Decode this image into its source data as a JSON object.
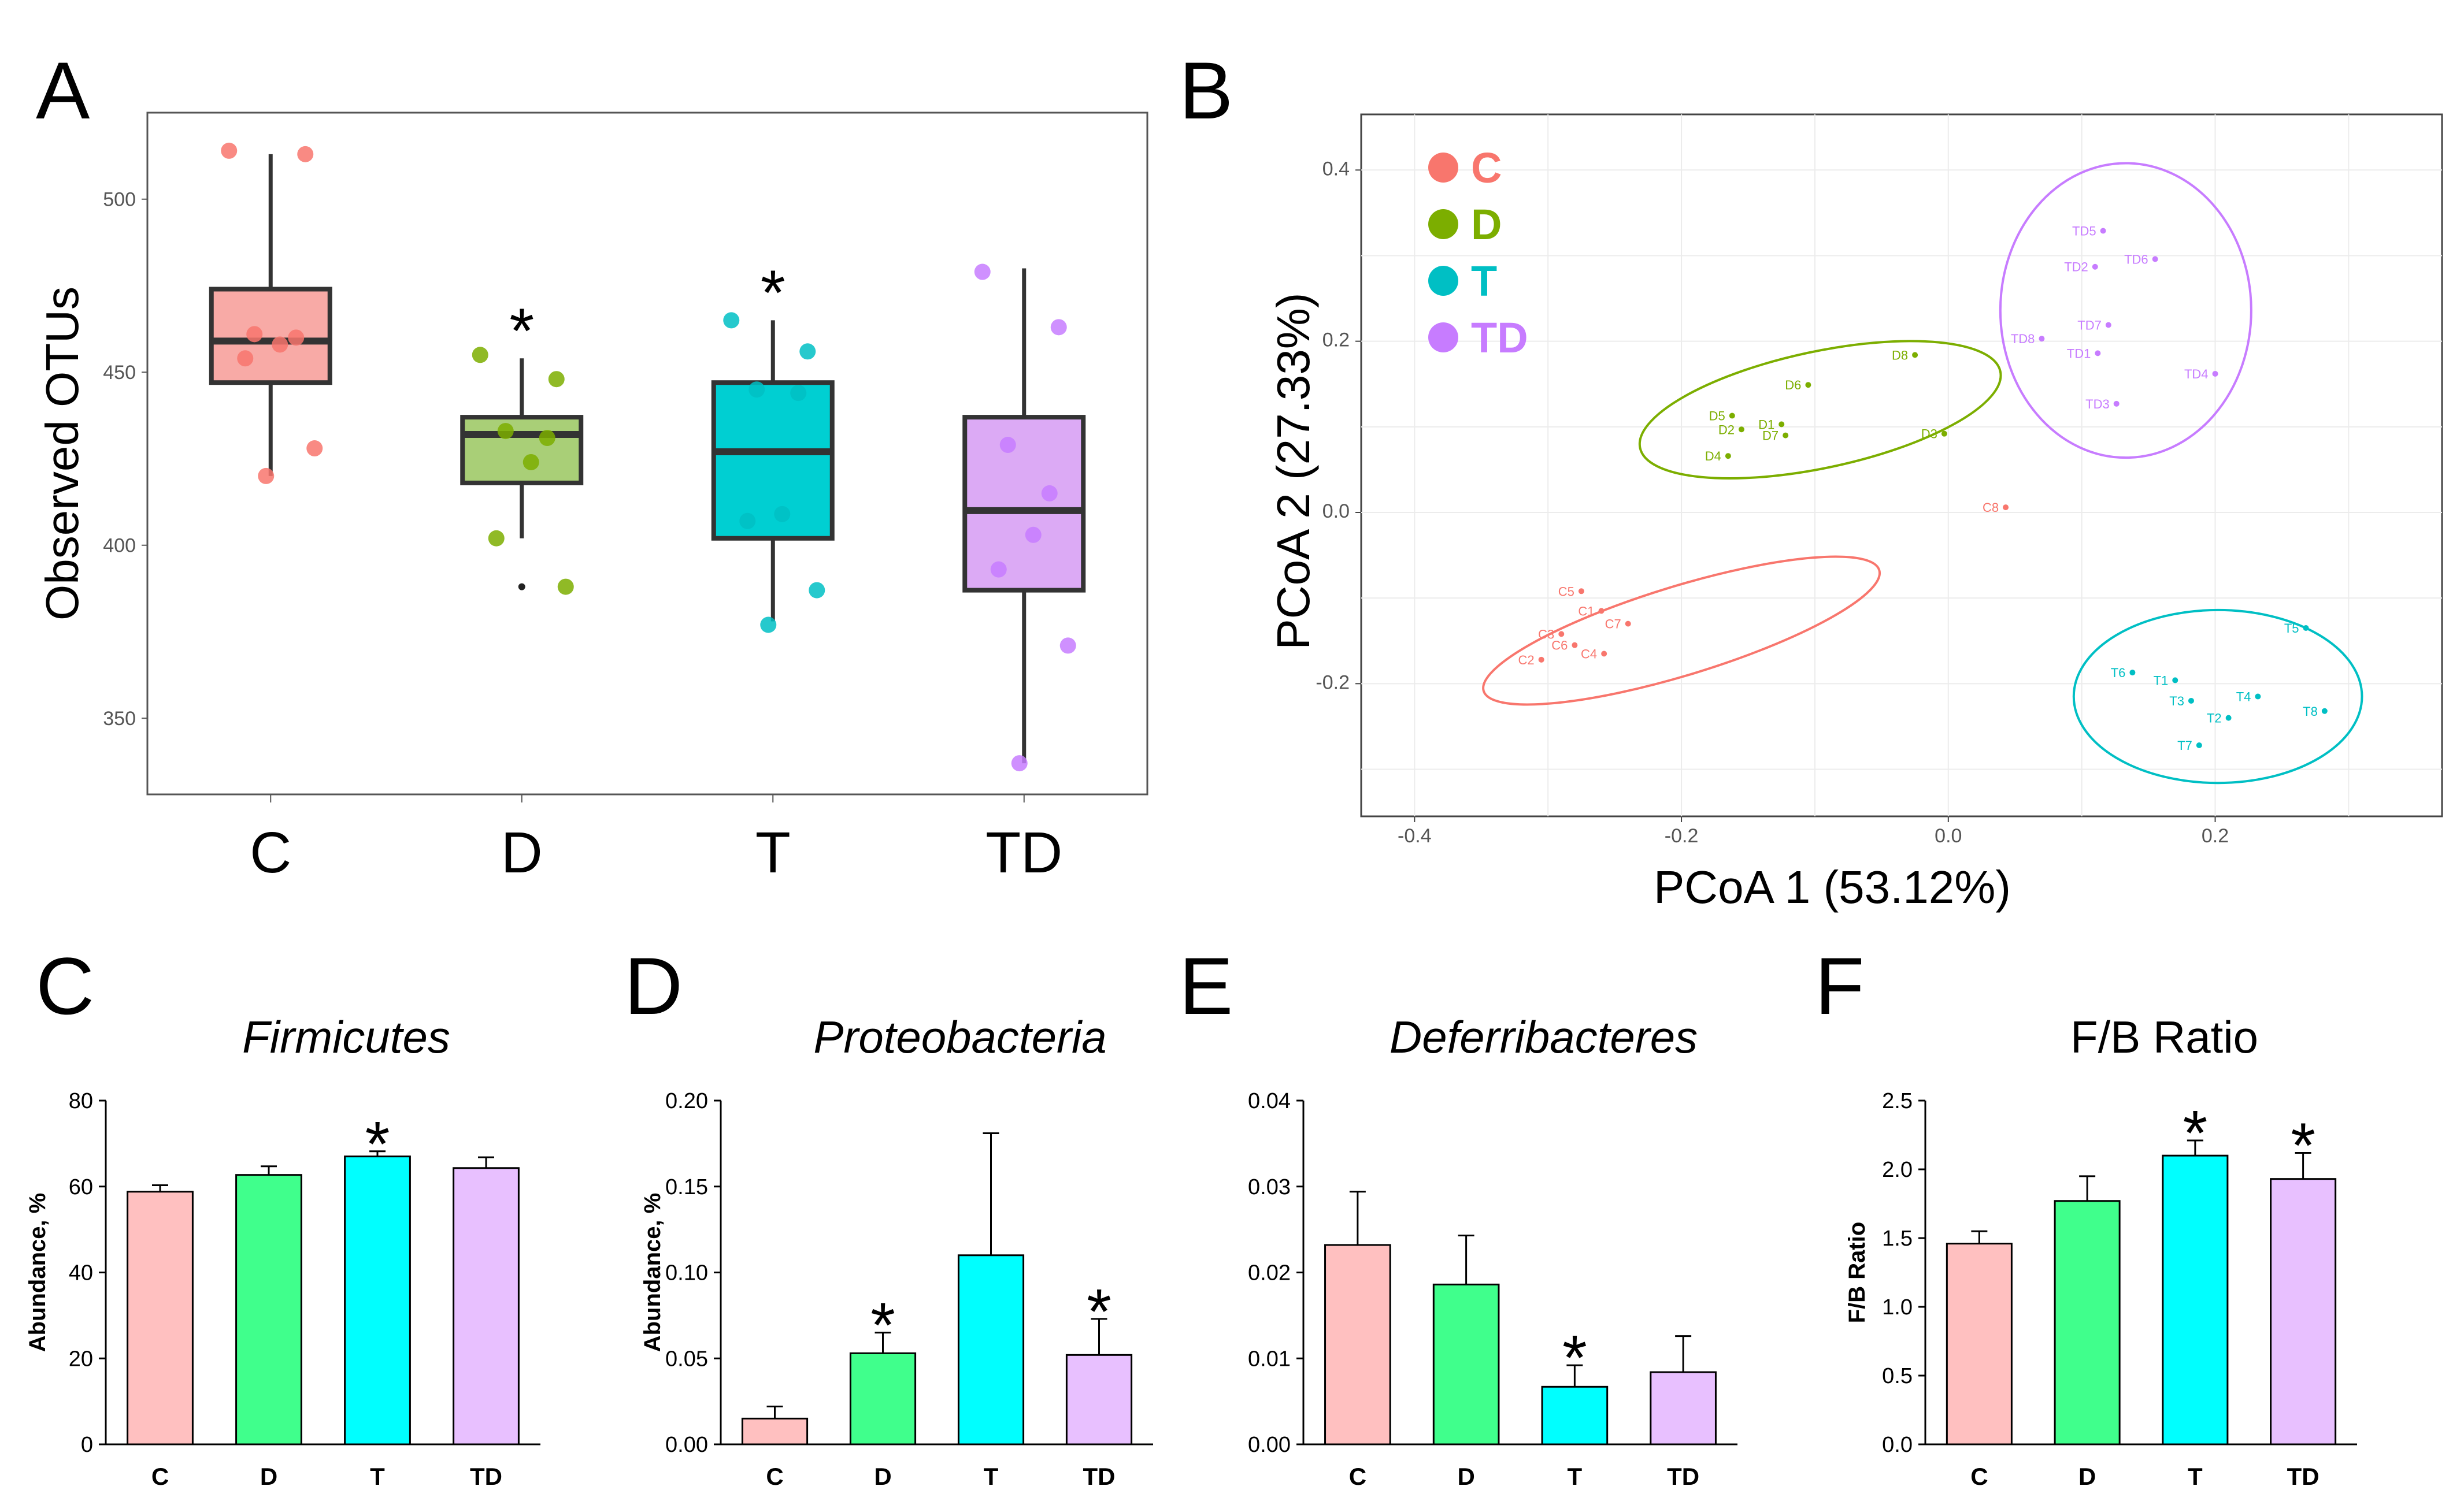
{
  "colors": {
    "C": "#f8766d",
    "D": "#7cae00",
    "T": "#00bfc4",
    "TD": "#c77cff"
  },
  "panels": {
    "A": {
      "letter": "A"
    },
    "B": {
      "letter": "B"
    },
    "C": {
      "letter": "C"
    },
    "D": {
      "letter": "D"
    },
    "E": {
      "letter": "E"
    },
    "F": {
      "letter": "F"
    }
  },
  "chart_data": [
    {
      "panel": "A",
      "type": "box",
      "ylabel": "Observed OTUs",
      "ylim": [
        328,
        525
      ],
      "yticks": [
        350,
        400,
        450,
        500
      ],
      "categories": [
        "C",
        "D",
        "T",
        "TD"
      ],
      "box_fill": [
        "#f8aaa6",
        "#a9cf77",
        "#00cfd2",
        "#dcaaf5"
      ],
      "boxes": [
        {
          "q1": 447,
          "median": 459,
          "q3": 474,
          "lo": 420,
          "hi": 513
        },
        {
          "q1": 418,
          "median": 432,
          "q3": 437,
          "lo": 402,
          "hi": 454
        },
        {
          "q1": 402,
          "median": 427,
          "q3": 447,
          "lo": 378,
          "hi": 465
        },
        {
          "q1": 387,
          "median": 410,
          "q3": 437,
          "lo": 337,
          "hi": 480
        }
      ],
      "outliers": [
        {
          "group": 1,
          "value": 388
        }
      ],
      "points": [
        [
          514,
          513,
          461,
          460,
          458,
          454,
          428,
          420
        ],
        [
          455,
          448,
          433,
          431,
          424,
          402,
          388
        ],
        [
          465,
          456,
          445,
          444,
          409,
          407,
          387,
          377
        ],
        [
          479,
          463,
          429,
          415,
          403,
          393,
          371,
          337
        ]
      ],
      "significance": [
        "",
        "*",
        "*",
        ""
      ]
    },
    {
      "panel": "B",
      "type": "scatter",
      "xlabel": "PCoA 1 (53.12%)",
      "ylabel": "PCoA 2 (27.33%)",
      "xlim": [
        -0.44,
        0.37
      ],
      "ylim": [
        -0.355,
        0.465
      ],
      "xticks": [
        -0.4,
        -0.2,
        0.0,
        0.2
      ],
      "yticks": [
        -0.2,
        0.0,
        0.2,
        0.4
      ],
      "tick_labels_x": [
        "-0.4",
        "-0.2",
        "0.0",
        "0.2"
      ],
      "tick_labels_y": [
        "-0.2",
        "0.0",
        "0.2",
        "0.4"
      ],
      "legend": [
        "C",
        "D",
        "T",
        "TD"
      ],
      "series": [
        {
          "name": "C",
          "points": [
            {
              "label": "C5",
              "x": -0.275,
              "y": -0.092
            },
            {
              "label": "C1",
              "x": -0.26,
              "y": -0.115
            },
            {
              "label": "C3",
              "x": -0.29,
              "y": -0.142
            },
            {
              "label": "C6",
              "x": -0.28,
              "y": -0.155
            },
            {
              "label": "C7",
              "x": -0.24,
              "y": -0.13
            },
            {
              "label": "C2",
              "x": -0.305,
              "y": -0.172
            },
            {
              "label": "C4",
              "x": -0.258,
              "y": -0.165
            },
            {
              "label": "C8",
              "x": 0.043,
              "y": 0.006
            }
          ]
        },
        {
          "name": "D",
          "points": [
            {
              "label": "D8",
              "x": -0.025,
              "y": 0.184
            },
            {
              "label": "D6",
              "x": -0.105,
              "y": 0.149
            },
            {
              "label": "D5",
              "x": -0.162,
              "y": 0.113
            },
            {
              "label": "D1",
              "x": -0.125,
              "y": 0.103
            },
            {
              "label": "D2",
              "x": -0.155,
              "y": 0.097
            },
            {
              "label": "D7",
              "x": -0.122,
              "y": 0.09
            },
            {
              "label": "D4",
              "x": -0.165,
              "y": 0.066
            },
            {
              "label": "D3",
              "x": -0.003,
              "y": 0.092
            }
          ]
        },
        {
          "name": "T",
          "points": [
            {
              "label": "T5",
              "x": 0.268,
              "y": -0.135
            },
            {
              "label": "T6",
              "x": 0.138,
              "y": -0.187
            },
            {
              "label": "T1",
              "x": 0.17,
              "y": -0.196
            },
            {
              "label": "T3",
              "x": 0.182,
              "y": -0.22
            },
            {
              "label": "T4",
              "x": 0.232,
              "y": -0.215
            },
            {
              "label": "T2",
              "x": 0.21,
              "y": -0.24
            },
            {
              "label": "T8",
              "x": 0.282,
              "y": -0.232
            },
            {
              "label": "T7",
              "x": 0.188,
              "y": -0.272
            }
          ]
        },
        {
          "name": "TD",
          "points": [
            {
              "label": "TD5",
              "x": 0.116,
              "y": 0.329
            },
            {
              "label": "TD2",
              "x": 0.11,
              "y": 0.287
            },
            {
              "label": "TD6",
              "x": 0.155,
              "y": 0.296
            },
            {
              "label": "TD7",
              "x": 0.12,
              "y": 0.219
            },
            {
              "label": "TD8",
              "x": 0.07,
              "y": 0.203
            },
            {
              "label": "TD1",
              "x": 0.112,
              "y": 0.186
            },
            {
              "label": "TD4",
              "x": 0.2,
              "y": 0.162
            },
            {
              "label": "TD3",
              "x": 0.126,
              "y": 0.127
            }
          ]
        }
      ],
      "ellipses": [
        {
          "name": "C",
          "cx": -0.2,
          "cy": -0.138,
          "rx": 0.155,
          "ry": 0.052,
          "angle_deg": -17
        },
        {
          "name": "D",
          "cx": -0.096,
          "cy": 0.12,
          "rx": 0.138,
          "ry": 0.068,
          "angle_deg": -12
        },
        {
          "name": "T",
          "cx": 0.202,
          "cy": -0.215,
          "rx": 0.108,
          "ry": 0.101,
          "angle_deg": 0
        },
        {
          "name": "TD",
          "cx": 0.133,
          "cy": 0.236,
          "rx": 0.094,
          "ry": 0.172,
          "angle_deg": 0
        }
      ]
    },
    {
      "panel": "C",
      "type": "bar",
      "title": "Firmicutes",
      "ylabel": "Abundance, %",
      "ylim": [
        0,
        80
      ],
      "yticks": [
        0,
        20,
        40,
        60,
        80
      ],
      "tick_labels": [
        "0",
        "20",
        "40",
        "60",
        "80"
      ],
      "categories": [
        "C",
        "D",
        "T",
        "TD"
      ],
      "values": [
        58.8,
        62.7,
        67.0,
        64.3
      ],
      "errors": [
        1.5,
        2.0,
        1.2,
        2.5
      ],
      "significance": [
        "",
        "",
        "*",
        ""
      ]
    },
    {
      "panel": "D",
      "type": "bar",
      "title": "Proteobacteria",
      "ylabel": "Abundance, %",
      "ylim": [
        0,
        0.2
      ],
      "yticks": [
        0,
        0.05,
        0.1,
        0.15,
        0.2
      ],
      "tick_labels": [
        "0.00",
        "0.05",
        "0.10",
        "0.15",
        "0.20"
      ],
      "categories": [
        "C",
        "D",
        "T",
        "TD"
      ],
      "values": [
        0.015,
        0.053,
        0.11,
        0.052
      ],
      "errors": [
        0.007,
        0.012,
        0.071,
        0.021
      ],
      "significance": [
        "",
        "*",
        "",
        "*"
      ]
    },
    {
      "panel": "E",
      "type": "bar",
      "title": "Deferribacteres",
      "ylabel": "",
      "ylim": [
        0,
        0.04
      ],
      "yticks": [
        0,
        0.01,
        0.02,
        0.03,
        0.04
      ],
      "tick_labels": [
        "0.00",
        "0.01",
        "0.02",
        "0.03",
        "0.04"
      ],
      "categories": [
        "C",
        "D",
        "T",
        "TD"
      ],
      "values": [
        0.0232,
        0.0186,
        0.0067,
        0.0084
      ],
      "errors": [
        0.0062,
        0.0057,
        0.0025,
        0.0042
      ],
      "significance": [
        "",
        "",
        "*",
        ""
      ]
    },
    {
      "panel": "F",
      "type": "bar",
      "title": "F/B Ratio",
      "ylabel": "F/B Ratio",
      "ylim": [
        0,
        2.5
      ],
      "yticks": [
        0,
        0.5,
        1.0,
        1.5,
        2.0,
        2.5
      ],
      "tick_labels": [
        "0.0",
        "0.5",
        "1.0",
        "1.5",
        "2.0",
        "2.5"
      ],
      "categories": [
        "C",
        "D",
        "T",
        "TD"
      ],
      "values": [
        1.46,
        1.77,
        2.1,
        1.93
      ],
      "errors": [
        0.09,
        0.18,
        0.11,
        0.19
      ],
      "significance": [
        "",
        "",
        "*",
        "*"
      ]
    }
  ]
}
